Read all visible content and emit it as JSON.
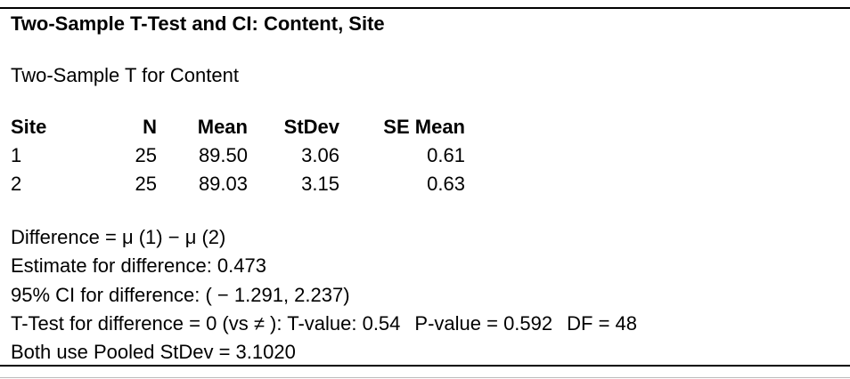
{
  "title": "Two-Sample T-Test and CI: Content, Site",
  "subtitle": "Two-Sample T for Content",
  "table": {
    "header": [
      "Site",
      "N",
      "Mean",
      "StDev",
      "SE Mean"
    ],
    "rows": [
      [
        "1",
        "25",
        "89.50",
        "3.06",
        "0.61"
      ],
      [
        "2",
        "25",
        "89.03",
        "3.15",
        "0.63"
      ]
    ]
  },
  "results": [
    [
      "Difference = μ (1) − μ (2)"
    ],
    [
      "Estimate for difference: 0.473"
    ],
    [
      "95% CI for difference: ( − 1.291, 2.237)"
    ],
    [
      "T-Test for difference = 0 (vs ≠ ): T-value: 0.54",
      "P-value = 0.592",
      "DF = 48"
    ],
    [
      "Both use Pooled StDev = 3.1020"
    ]
  ]
}
